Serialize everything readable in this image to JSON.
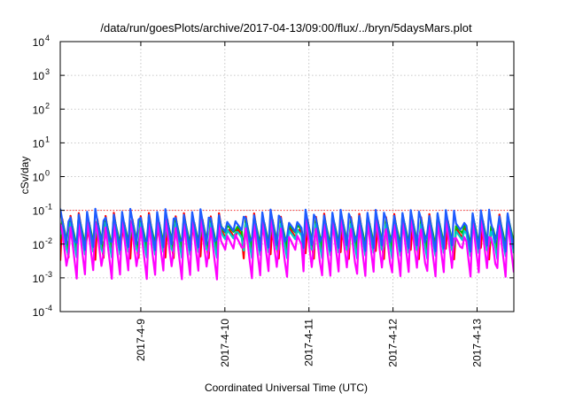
{
  "chart_data": {
    "type": "line",
    "title": "/data/run/goesPlots/archive/2017-04-13/09:00/flux/../bryn/5daysMars.plot",
    "xlabel": "Coordinated Universal Time (UTC)",
    "ylabel": "cSv/day",
    "y_scale": "log",
    "ylim": [
      0.0001,
      10000
    ],
    "y_ticks": [
      {
        "base": "10",
        "exp": "-4"
      },
      {
        "base": "10",
        "exp": "-3"
      },
      {
        "base": "10",
        "exp": "-2"
      },
      {
        "base": "10",
        "exp": "-1"
      },
      {
        "base": "10",
        "exp": "0"
      },
      {
        "base": "10",
        "exp": "1"
      },
      {
        "base": "10",
        "exp": "2"
      },
      {
        "base": "10",
        "exp": "3"
      },
      {
        "base": "10",
        "exp": "4"
      }
    ],
    "xlim": [
      "2017-04-08 01:00",
      "2017-04-13 10:30"
    ],
    "x_ticks": [
      "2017-4-9",
      "2017-4-10",
      "2017-4-11",
      "2017-4-12",
      "2017-4-13"
    ],
    "grid": true,
    "legend": "none",
    "reference_level": 0.1,
    "pattern": {
      "shape": "sawtooth",
      "period_hours": 2.5,
      "quiet_windows": [
        [
          "2017-04-09 23:00",
          "2017-04-10 05:00"
        ],
        [
          "2017-04-10 18:00",
          "2017-04-10 22:00"
        ],
        [
          "2017-04-12 17:30",
          "2017-04-12 21:00"
        ],
        [
          "2017-04-13 03:30",
          "2017-04-13 04:30"
        ]
      ]
    },
    "series": [
      {
        "color": "#ff0000",
        "peak": 0.085,
        "trough": 0.0032
      },
      {
        "color": "#00c000",
        "peak": 0.075,
        "trough": 0.007
      },
      {
        "color": "#00cccc",
        "peak": 0.065,
        "trough": 0.0035
      },
      {
        "color": "#ff00ff",
        "peak": 0.07,
        "trough": 0.0009
      },
      {
        "color": "#1e5bff",
        "peak": 0.12,
        "trough": 0.006
      }
    ]
  }
}
